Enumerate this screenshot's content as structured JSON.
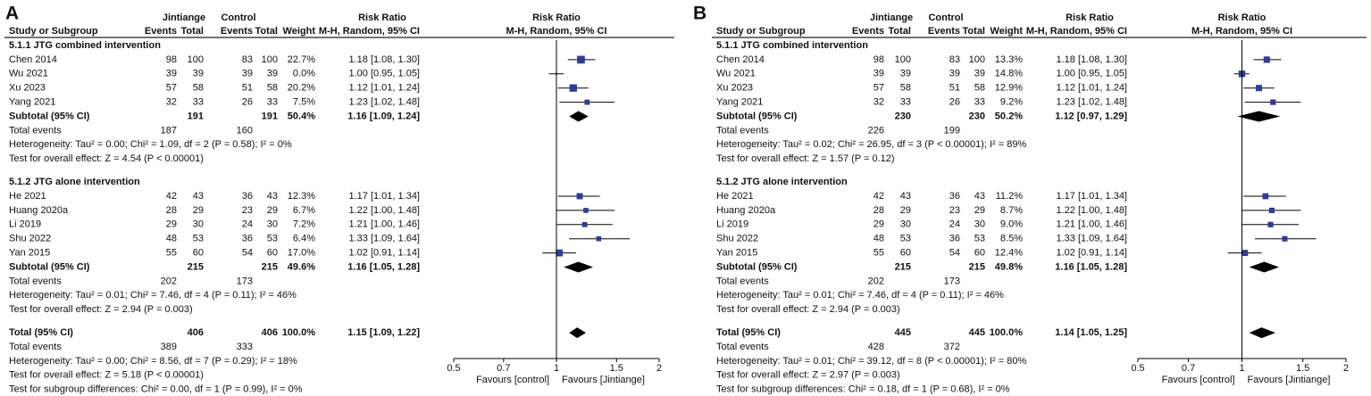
{
  "chart_data": [
    {
      "type": "forest",
      "panel": "A",
      "header": {
        "group1": "Jintiange",
        "group2": "Control",
        "effect": "Risk Ratio",
        "plot": "Risk Ratio",
        "study": "Study or Subgroup",
        "events1": "Events",
        "total1": "Total",
        "events2": "Events",
        "total2": "Total",
        "weight": "Weight",
        "method": "M-H, Random, 95% CI",
        "plot_method": "M-H, Random, 95% CI"
      },
      "subgroups": [
        {
          "name": "5.1.1 JTG combined intervention",
          "studies": [
            {
              "name": "Chen 2014",
              "events1": 98,
              "total1": 100,
              "events2": 83,
              "total2": 100,
              "weight": 22.7,
              "weight_label": "22.7%",
              "rr": 1.18,
              "ci": [
                1.08,
                1.3
              ],
              "ci_label": "1.18 [1.08, 1.30]"
            },
            {
              "name": "Wu 2021",
              "events1": 39,
              "total1": 39,
              "events2": 39,
              "total2": 39,
              "weight": 0,
              "weight_label": "0.0%",
              "rr": 1,
              "ci": [
                0.95,
                1.05
              ],
              "ci_label": "1.00 [0.95, 1.05]"
            },
            {
              "name": "Xu 2023",
              "events1": 57,
              "total1": 58,
              "events2": 51,
              "total2": 58,
              "weight": 20.2,
              "weight_label": "20.2%",
              "rr": 1.12,
              "ci": [
                1.01,
                1.24
              ],
              "ci_label": "1.12 [1.01, 1.24]"
            },
            {
              "name": "Yang 2021",
              "events1": 32,
              "total1": 33,
              "events2": 26,
              "total2": 33,
              "weight": 7.5,
              "weight_label": "7.5%",
              "rr": 1.23,
              "ci": [
                1.02,
                1.48
              ],
              "ci_label": "1.23 [1.02, 1.48]"
            }
          ],
          "subtotal": {
            "name": "Subtotal (95% CI)",
            "total1": 191,
            "total2": 191,
            "weight_label": "50.4%",
            "rr": 1.16,
            "ci": [
              1.09,
              1.24
            ],
            "ci_label": "1.16 [1.09, 1.24]"
          },
          "total_events": {
            "label": "Total events",
            "events1": 187,
            "events2": 160
          },
          "heterogeneity": "Heterogeneity: Tau² = 0.00; Chi² = 1.09, df = 2 (P = 0.58); I² = 0%",
          "overall": "Test for overall effect: Z = 4.54 (P < 0.00001)"
        },
        {
          "name": "5.1.2 JTG alone intervention",
          "studies": [
            {
              "name": "He 2021",
              "events1": 42,
              "total1": 43,
              "events2": 36,
              "total2": 43,
              "weight": 12.3,
              "weight_label": "12.3%",
              "rr": 1.17,
              "ci": [
                1.01,
                1.34
              ],
              "ci_label": "1.17 [1.01, 1.34]"
            },
            {
              "name": "Huang 2020a",
              "events1": 28,
              "total1": 29,
              "events2": 23,
              "total2": 29,
              "weight": 6.7,
              "weight_label": "6.7%",
              "rr": 1.22,
              "ci": [
                1,
                1.48
              ],
              "ci_label": "1.22 [1.00, 1.48]"
            },
            {
              "name": "Li 2019",
              "events1": 29,
              "total1": 30,
              "events2": 24,
              "total2": 30,
              "weight": 7.2,
              "weight_label": "7.2%",
              "rr": 1.21,
              "ci": [
                1,
                1.46
              ],
              "ci_label": "1.21 [1.00, 1.46]"
            },
            {
              "name": "Shu 2022",
              "events1": 48,
              "total1": 53,
              "events2": 36,
              "total2": 53,
              "weight": 6.4,
              "weight_label": "6.4%",
              "rr": 1.33,
              "ci": [
                1.09,
                1.64
              ],
              "ci_label": "1.33 [1.09, 1.64]"
            },
            {
              "name": "Yan 2015",
              "events1": 55,
              "total1": 60,
              "events2": 54,
              "total2": 60,
              "weight": 17,
              "weight_label": "17.0%",
              "rr": 1.02,
              "ci": [
                0.91,
                1.14
              ],
              "ci_label": "1.02 [0.91, 1.14]"
            }
          ],
          "subtotal": {
            "name": "Subtotal (95% CI)",
            "total1": 215,
            "total2": 215,
            "weight_label": "49.6%",
            "rr": 1.16,
            "ci": [
              1.05,
              1.28
            ],
            "ci_label": "1.16 [1.05, 1.28]"
          },
          "total_events": {
            "label": "Total events",
            "events1": 202,
            "events2": 173
          },
          "heterogeneity": "Heterogeneity: Tau² = 0.01; Chi² = 7.46, df = 4 (P = 0.11); I² = 46%",
          "overall": "Test for overall effect: Z = 2.94 (P = 0.003)"
        }
      ],
      "total": {
        "name": "Total (95% CI)",
        "total1": 406,
        "total2": 406,
        "weight_label": "100.0%",
        "rr": 1.15,
        "ci": [
          1.09,
          1.22
        ],
        "ci_label": "1.15 [1.09, 1.22]",
        "total_events": {
          "label": "Total events",
          "events1": 389,
          "events2": 333
        },
        "heterogeneity": "Heterogeneity: Tau² = 0.00; Chi² = 8.56, df = 7 (P = 0.29); I² = 18%",
        "overall": "Test for overall effect: Z = 5.18 (P < 0.00001)",
        "subgroup_diff": "Test for subgroup differences: Chi² = 0.00, df = 1 (P = 0.99), I² = 0%"
      },
      "xlim": [
        0.5,
        2
      ],
      "xticks": [
        0.5,
        0.7,
        1,
        1.5,
        2
      ],
      "log_scale": true,
      "xlabel_left": "Favours [control]",
      "xlabel_right": "Favours [Jintiange]",
      "square_color": "#2e3d98"
    },
    {
      "type": "forest",
      "panel": "B",
      "header": {
        "group1": "Jintiange",
        "group2": "Control",
        "effect": "Risk Ratio",
        "plot": "Risk Ratio",
        "study": "Study or Subgroup",
        "events1": "Events",
        "total1": "Total",
        "events2": "Events",
        "total2": "Total",
        "weight": "Weight",
        "method": "M-H, Random, 95% CI",
        "plot_method": "M-H, Random, 95% CI"
      },
      "subgroups": [
        {
          "name": "5.1.1 JTG combined intervention",
          "studies": [
            {
              "name": "Chen 2014",
              "events1": 98,
              "total1": 100,
              "events2": 83,
              "total2": 100,
              "weight": 13.3,
              "weight_label": "13.3%",
              "rr": 1.18,
              "ci": [
                1.08,
                1.3
              ],
              "ci_label": "1.18 [1.08, 1.30]"
            },
            {
              "name": "Wu 2021",
              "events1": 39,
              "total1": 39,
              "events2": 39,
              "total2": 39,
              "weight": 14.8,
              "weight_label": "14.8%",
              "rr": 1,
              "ci": [
                0.95,
                1.05
              ],
              "ci_label": "1.00 [0.95, 1.05]"
            },
            {
              "name": "Xu 2023",
              "events1": 57,
              "total1": 58,
              "events2": 51,
              "total2": 58,
              "weight": 12.9,
              "weight_label": "12.9%",
              "rr": 1.12,
              "ci": [
                1.01,
                1.24
              ],
              "ci_label": "1.12 [1.01, 1.24]"
            },
            {
              "name": "Yang 2021",
              "events1": 32,
              "total1": 33,
              "events2": 26,
              "total2": 33,
              "weight": 9.2,
              "weight_label": "9.2%",
              "rr": 1.23,
              "ci": [
                1.02,
                1.48
              ],
              "ci_label": "1.23 [1.02, 1.48]"
            }
          ],
          "subtotal": {
            "name": "Subtotal (95% CI)",
            "total1": 230,
            "total2": 230,
            "weight_label": "50.2%",
            "rr": 1.12,
            "ci": [
              0.97,
              1.29
            ],
            "ci_label": "1.12 [0.97, 1.29]"
          },
          "total_events": {
            "label": "Total events",
            "events1": 226,
            "events2": 199
          },
          "heterogeneity": "Heterogeneity: Tau² = 0.02; Chi² = 26.95, df = 3 (P < 0.00001); I² = 89%",
          "overall": "Test for overall effect: Z = 1.57 (P = 0.12)"
        },
        {
          "name": "5.1.2 JTG alone intervention",
          "studies": [
            {
              "name": "He 2021",
              "events1": 42,
              "total1": 43,
              "events2": 36,
              "total2": 43,
              "weight": 11.2,
              "weight_label": "11.2%",
              "rr": 1.17,
              "ci": [
                1.01,
                1.34
              ],
              "ci_label": "1.17 [1.01, 1.34]"
            },
            {
              "name": "Huang 2020a",
              "events1": 28,
              "total1": 29,
              "events2": 23,
              "total2": 29,
              "weight": 8.7,
              "weight_label": "8.7%",
              "rr": 1.22,
              "ci": [
                1,
                1.48
              ],
              "ci_label": "1.22 [1.00, 1.48]"
            },
            {
              "name": "Li 2019",
              "events1": 29,
              "total1": 30,
              "events2": 24,
              "total2": 30,
              "weight": 9,
              "weight_label": "9.0%",
              "rr": 1.21,
              "ci": [
                1,
                1.46
              ],
              "ci_label": "1.21 [1.00, 1.46]"
            },
            {
              "name": "Shu 2022",
              "events1": 48,
              "total1": 53,
              "events2": 36,
              "total2": 53,
              "weight": 8.5,
              "weight_label": "8.5%",
              "rr": 1.33,
              "ci": [
                1.09,
                1.64
              ],
              "ci_label": "1.33 [1.09, 1.64]"
            },
            {
              "name": "Yan 2015",
              "events1": 55,
              "total1": 60,
              "events2": 54,
              "total2": 60,
              "weight": 12.4,
              "weight_label": "12.4%",
              "rr": 1.02,
              "ci": [
                0.91,
                1.14
              ],
              "ci_label": "1.02 [0.91, 1.14]"
            }
          ],
          "subtotal": {
            "name": "Subtotal (95% CI)",
            "total1": 215,
            "total2": 215,
            "weight_label": "49.8%",
            "rr": 1.16,
            "ci": [
              1.05,
              1.28
            ],
            "ci_label": "1.16 [1.05, 1.28]"
          },
          "total_events": {
            "label": "Total events",
            "events1": 202,
            "events2": 173
          },
          "heterogeneity": "Heterogeneity: Tau² = 0.01; Chi² = 7.46, df = 4 (P = 0.11); I² = 46%",
          "overall": "Test for overall effect: Z = 2.94 (P = 0.003)"
        }
      ],
      "total": {
        "name": "Total (95% CI)",
        "total1": 445,
        "total2": 445,
        "weight_label": "100.0%",
        "rr": 1.14,
        "ci": [
          1.05,
          1.25
        ],
        "ci_label": "1.14 [1.05, 1.25]",
        "total_events": {
          "label": "Total events",
          "events1": 428,
          "events2": 372
        },
        "heterogeneity": "Heterogeneity: Tau² = 0.01; Chi² = 39.12, df = 8 (P < 0.00001); I² = 80%",
        "overall": "Test for overall effect: Z = 2.97 (P = 0.003)",
        "subgroup_diff": "Test for subgroup differences: Chi² = 0.18, df = 1 (P = 0.68), I² = 0%"
      },
      "xlim": [
        0.5,
        2
      ],
      "xticks": [
        0.5,
        0.7,
        1,
        1.5,
        2
      ],
      "log_scale": true,
      "xlabel_left": "Favours [control]",
      "xlabel_right": "Favours [Jintiange]",
      "square_color": "#2e3d98"
    }
  ]
}
